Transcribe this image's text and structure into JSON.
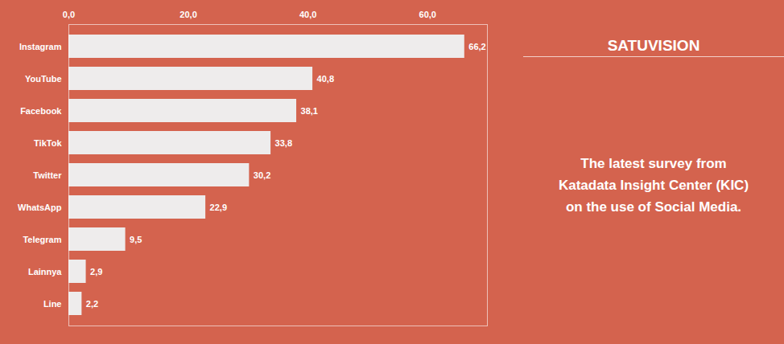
{
  "chart_data": {
    "type": "bar",
    "orientation": "horizontal",
    "title": "SATUVISION",
    "subtitle": "The latest survey from\nKatadata Insight Center (KIC)\non the use of Social Media.",
    "categories": [
      "Instagram",
      "YouTube",
      "Facebook",
      "TikTok",
      "Twitter",
      "WhatsApp",
      "Telegram",
      "Lainnya",
      "Line"
    ],
    "values": [
      66.2,
      40.8,
      38.1,
      33.8,
      30.2,
      22.9,
      9.5,
      2.9,
      2.2
    ],
    "value_labels": [
      "66,2",
      "40,8",
      "38,1",
      "33,8",
      "30,2",
      "22,9",
      "9,5",
      "2,9",
      "2,2"
    ],
    "data_labels": true,
    "color": "#eeecec",
    "xlim": [
      0,
      70
    ],
    "xticks": [
      {
        "value": 0.0,
        "label": "0,0"
      },
      {
        "value": 20.0,
        "label": "20,0"
      },
      {
        "value": 40.0,
        "label": "40,0"
      },
      {
        "value": 60.0,
        "label": "60,0"
      }
    ],
    "grid": false
  }
}
